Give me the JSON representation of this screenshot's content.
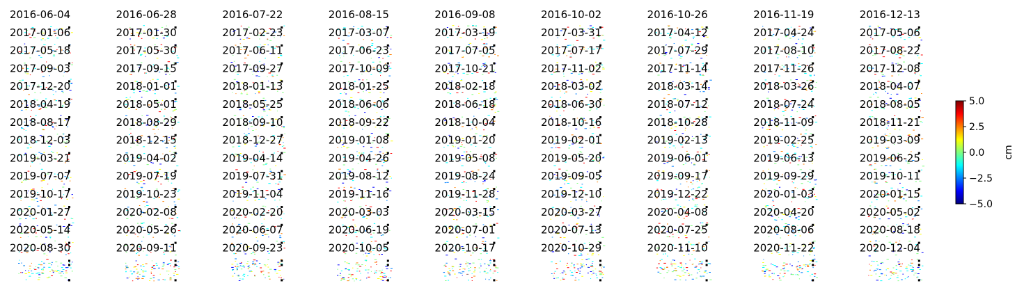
{
  "chart_data": {
    "type": "heatmap",
    "dates": [
      "2016-06-04",
      "2016-06-28",
      "2016-07-22",
      "2016-08-15",
      "2016-09-08",
      "2016-10-02",
      "2016-10-26",
      "2016-11-19",
      "2016-12-13",
      "2017-01-06",
      "2017-01-30",
      "2017-02-23",
      "2017-03-07",
      "2017-03-19",
      "2017-03-31",
      "2017-04-12",
      "2017-04-24",
      "2017-05-06",
      "2017-05-18",
      "2017-05-30",
      "2017-06-11",
      "2017-06-23",
      "2017-07-05",
      "2017-07-17",
      "2017-07-29",
      "2017-08-10",
      "2017-08-22",
      "2017-09-03",
      "2017-09-15",
      "2017-09-27",
      "2017-10-09",
      "2017-10-21",
      "2017-11-02",
      "2017-11-14",
      "2017-11-26",
      "2017-12-08",
      "2017-12-20",
      "2018-01-01",
      "2018-01-13",
      "2018-01-25",
      "2018-02-18",
      "2018-03-02",
      "2018-03-14",
      "2018-03-26",
      "2018-04-07",
      "2018-04-19",
      "2018-05-01",
      "2018-05-25",
      "2018-06-06",
      "2018-06-18",
      "2018-06-30",
      "2018-07-12",
      "2018-07-24",
      "2018-08-05",
      "2018-08-17",
      "2018-08-29",
      "2018-09-10",
      "2018-09-22",
      "2018-10-04",
      "2018-10-16",
      "2018-10-28",
      "2018-11-09",
      "2018-11-21",
      "2018-12-03",
      "2018-12-15",
      "2018-12-27",
      "2019-01-08",
      "2019-01-20",
      "2019-02-01",
      "2019-02-13",
      "2019-02-25",
      "2019-03-09",
      "2019-03-21",
      "2019-04-02",
      "2019-04-14",
      "2019-04-26",
      "2019-05-08",
      "2019-05-20",
      "2019-06-01",
      "2019-06-13",
      "2019-06-25",
      "2019-07-07",
      "2019-07-19",
      "2019-07-31",
      "2019-08-12",
      "2019-08-24",
      "2019-09-05",
      "2019-09-17",
      "2019-09-29",
      "2019-10-11",
      "2019-10-17",
      "2019-10-23",
      "2019-11-04",
      "2019-11-16",
      "2019-11-28",
      "2019-12-10",
      "2019-12-22",
      "2020-01-03",
      "2020-01-15",
      "2020-01-27",
      "2020-02-08",
      "2020-02-20",
      "2020-03-03",
      "2020-03-15",
      "2020-03-27",
      "2020-04-08",
      "2020-04-20",
      "2020-05-02",
      "2020-05-14",
      "2020-05-26",
      "2020-06-07",
      "2020-06-19",
      "2020-07-01",
      "2020-07-13",
      "2020-07-25",
      "2020-08-06",
      "2020-08-18",
      "2020-08-30",
      "2020-09-11",
      "2020-09-23",
      "2020-10-05",
      "2020-10-17",
      "2020-10-29",
      "2020-11-10",
      "2020-11-22",
      "2020-12-04"
    ],
    "colorbar": {
      "label": "cm",
      "range": [
        -5.0,
        5.0
      ],
      "ticks": [
        "5.0",
        "2.5",
        "0.0",
        "−2.5",
        "−5.0"
      ],
      "tick_values": [
        5.0,
        2.5,
        0.0,
        -2.5,
        -5.0
      ],
      "colormap": "jet"
    },
    "grid": false
  },
  "colors": {
    "jet_stops": [
      "#00007f",
      "#0000ff",
      "#007fff",
      "#00ffff",
      "#7fff7f",
      "#ffff00",
      "#ff7f00",
      "#ff0000",
      "#7f0000"
    ],
    "marker": "#000000"
  }
}
